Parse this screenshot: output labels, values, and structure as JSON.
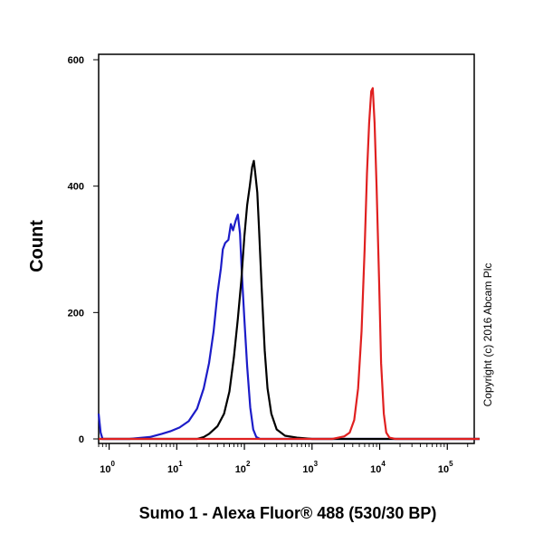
{
  "chart_data": {
    "type": "line",
    "xlabel": "Sumo 1 - Alexa Fluor® 488 (530/30 BP)",
    "ylabel": "Count",
    "x_scale": "log",
    "xlim": [
      0.7,
      250000
    ],
    "ylim": [
      0,
      600
    ],
    "x_ticks": [
      {
        "base": "10",
        "exp": "0",
        "value": 1
      },
      {
        "base": "10",
        "exp": "1",
        "value": 10
      },
      {
        "base": "10",
        "exp": "2",
        "value": 100
      },
      {
        "base": "10",
        "exp": "3",
        "value": 1000
      },
      {
        "base": "10",
        "exp": "4",
        "value": 10000
      },
      {
        "base": "10",
        "exp": "5",
        "value": 100000
      }
    ],
    "y_ticks": [
      "0",
      "200",
      "400",
      "600"
    ],
    "annotation": "Copyright (c) 2016 Abcam Plc",
    "series": [
      {
        "color": "#1c1cc8",
        "points": [
          [
            0.7,
            40
          ],
          [
            0.75,
            10
          ],
          [
            0.8,
            0
          ],
          [
            2,
            0
          ],
          [
            4,
            3
          ],
          [
            6,
            8
          ],
          [
            8,
            12
          ],
          [
            11,
            18
          ],
          [
            15,
            28
          ],
          [
            20,
            48
          ],
          [
            25,
            80
          ],
          [
            30,
            120
          ],
          [
            35,
            170
          ],
          [
            40,
            230
          ],
          [
            45,
            270
          ],
          [
            48,
            300
          ],
          [
            52,
            310
          ],
          [
            58,
            315
          ],
          [
            63,
            340
          ],
          [
            68,
            330
          ],
          [
            74,
            345
          ],
          [
            80,
            355
          ],
          [
            86,
            325
          ],
          [
            92,
            260
          ],
          [
            100,
            190
          ],
          [
            110,
            115
          ],
          [
            122,
            50
          ],
          [
            135,
            15
          ],
          [
            150,
            3
          ],
          [
            170,
            0
          ],
          [
            300000,
            0
          ]
        ]
      },
      {
        "color": "#000000",
        "points": [
          [
            0.7,
            0
          ],
          [
            20,
            0
          ],
          [
            25,
            3
          ],
          [
            30,
            8
          ],
          [
            40,
            20
          ],
          [
            50,
            40
          ],
          [
            60,
            75
          ],
          [
            70,
            130
          ],
          [
            80,
            190
          ],
          [
            90,
            250
          ],
          [
            100,
            320
          ],
          [
            110,
            370
          ],
          [
            120,
            400
          ],
          [
            130,
            430
          ],
          [
            138,
            440
          ],
          [
            145,
            420
          ],
          [
            155,
            390
          ],
          [
            165,
            330
          ],
          [
            180,
            240
          ],
          [
            200,
            140
          ],
          [
            220,
            80
          ],
          [
            250,
            40
          ],
          [
            300,
            15
          ],
          [
            400,
            5
          ],
          [
            600,
            2
          ],
          [
            1000,
            0
          ],
          [
            300000,
            0
          ]
        ]
      },
      {
        "color": "#e02020",
        "points": [
          [
            0.7,
            0
          ],
          [
            2000,
            0
          ],
          [
            3000,
            4
          ],
          [
            3600,
            10
          ],
          [
            4200,
            30
          ],
          [
            4800,
            80
          ],
          [
            5400,
            170
          ],
          [
            6000,
            300
          ],
          [
            6500,
            420
          ],
          [
            7000,
            500
          ],
          [
            7500,
            550
          ],
          [
            7900,
            555
          ],
          [
            8400,
            500
          ],
          [
            9000,
            400
          ],
          [
            9800,
            250
          ],
          [
            10500,
            120
          ],
          [
            11500,
            40
          ],
          [
            12500,
            10
          ],
          [
            14000,
            2
          ],
          [
            17000,
            0
          ],
          [
            300000,
            0
          ]
        ]
      }
    ]
  }
}
